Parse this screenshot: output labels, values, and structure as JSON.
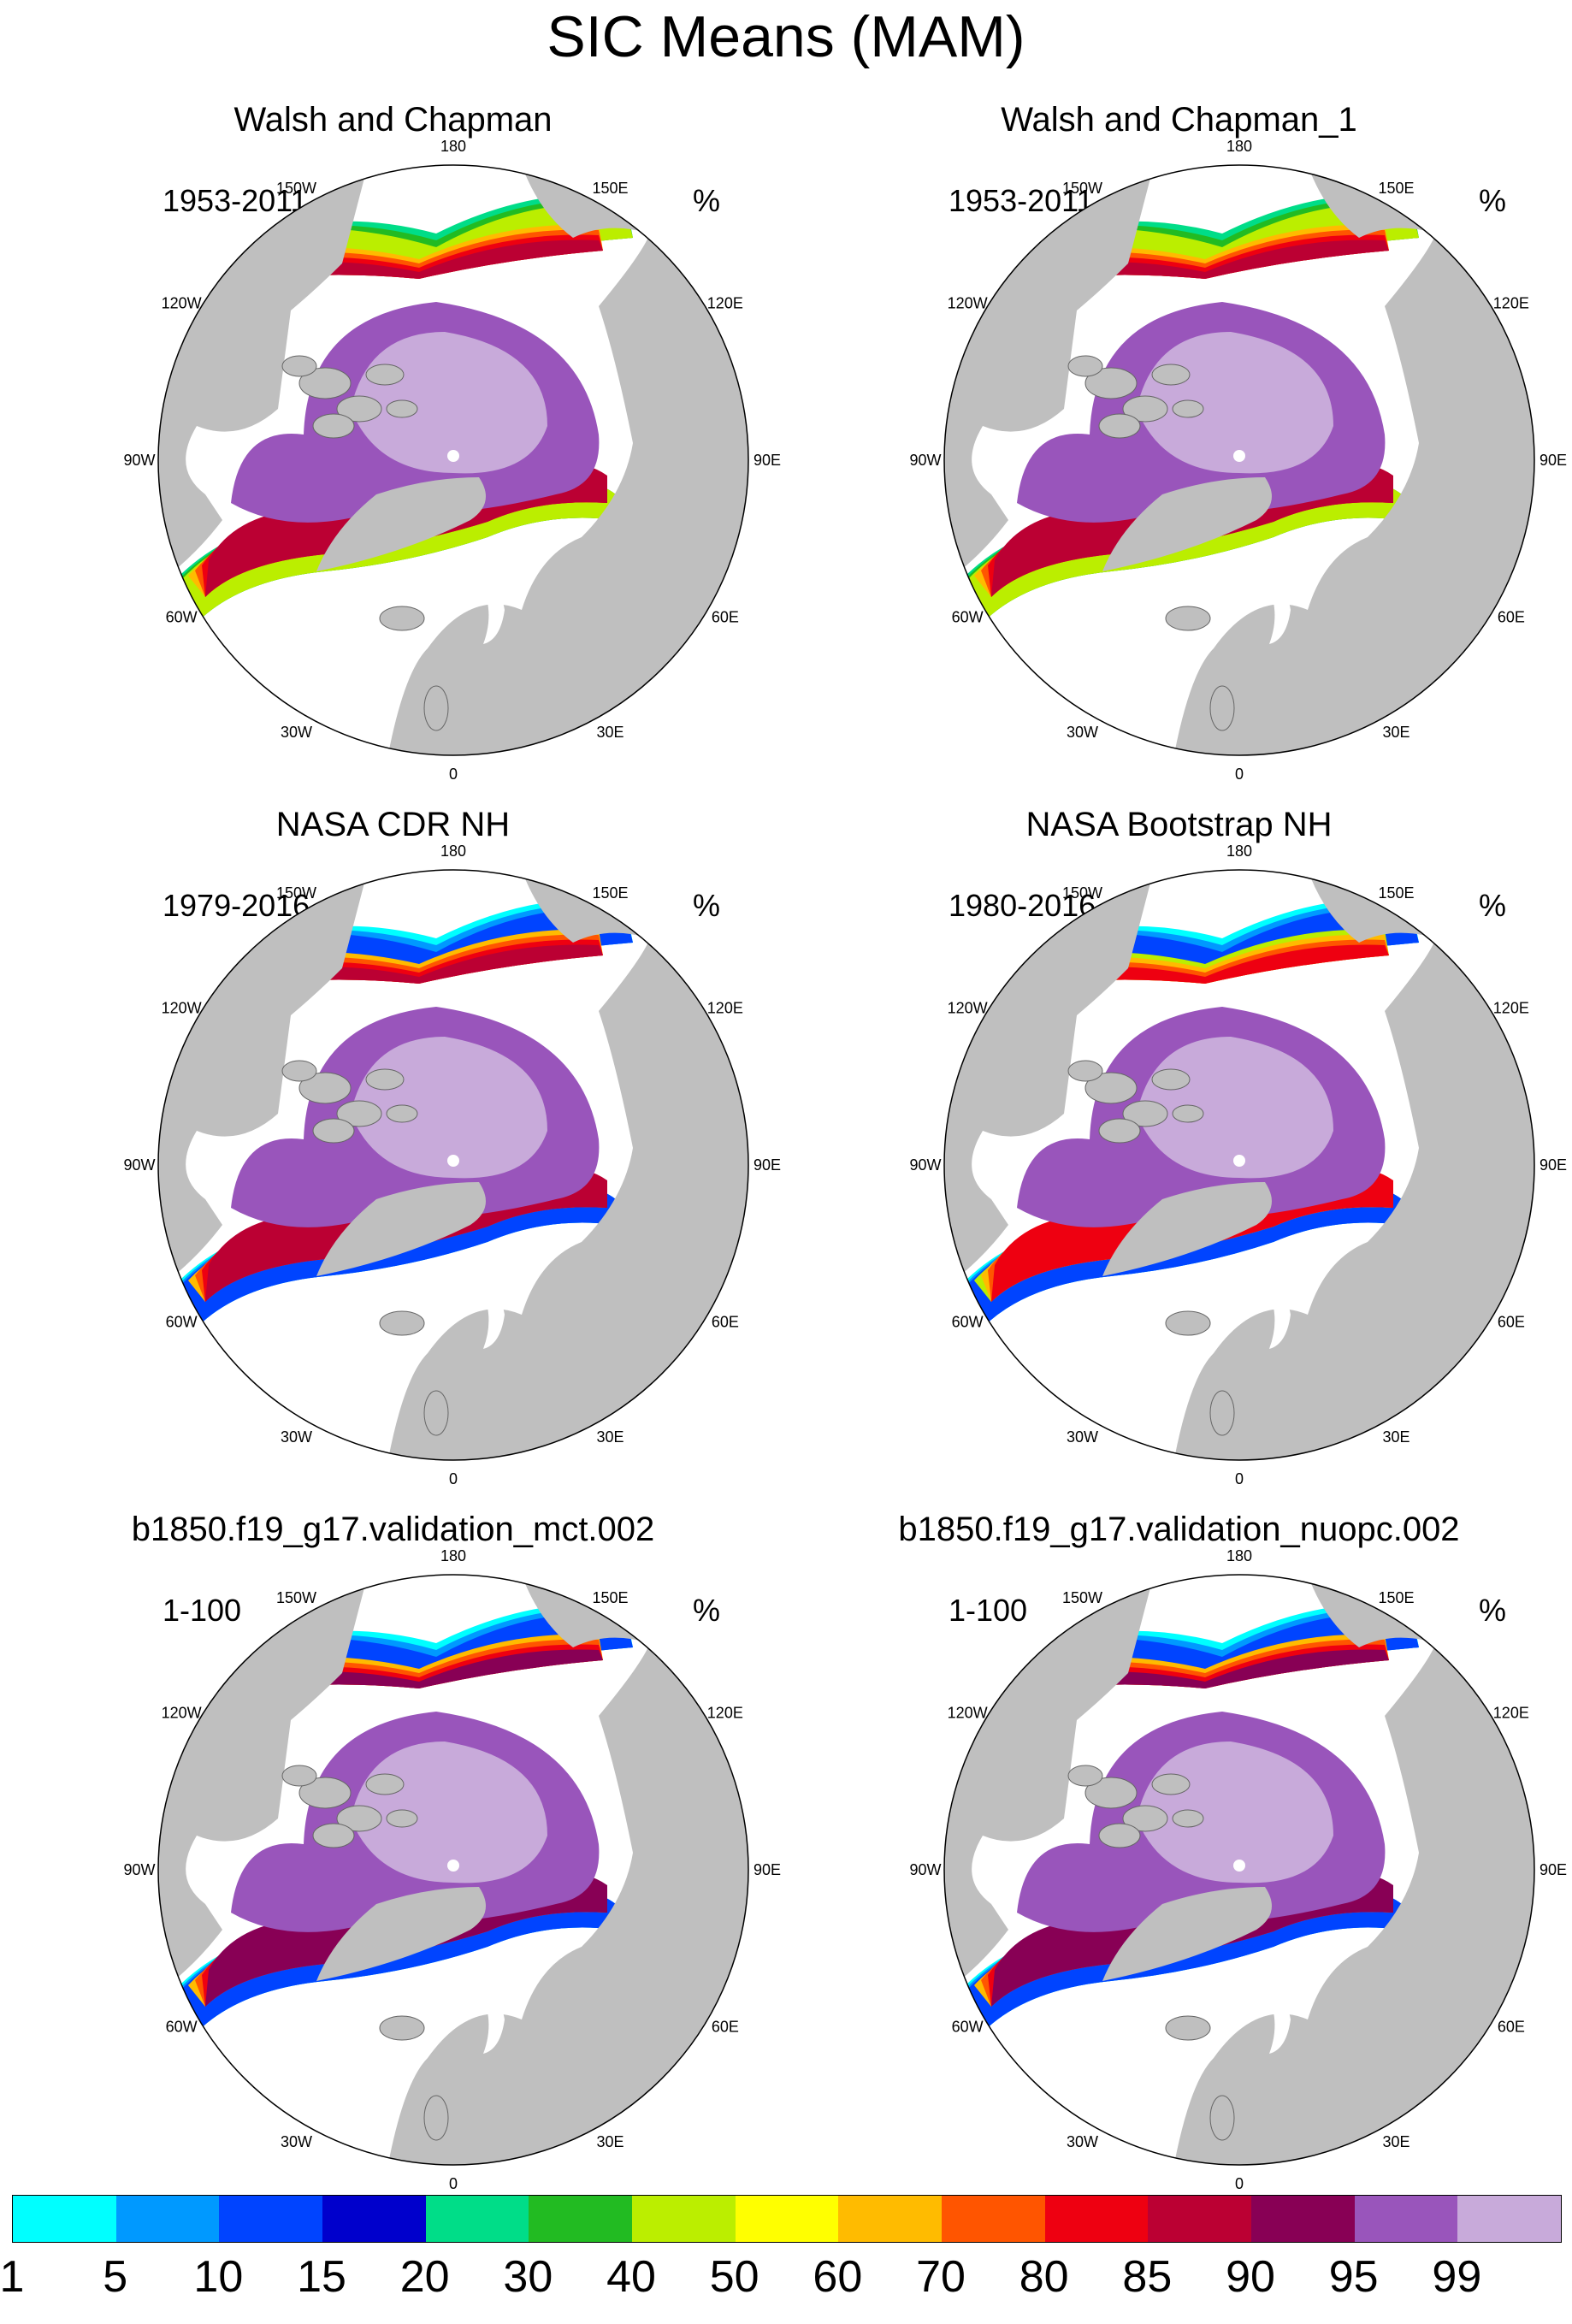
{
  "figure": {
    "title": "SIC Means (MAM)",
    "unit_label": "%"
  },
  "lon_labels": [
    "180",
    "150E",
    "120E",
    "90E",
    "60E",
    "30E",
    "0",
    "30W",
    "60W",
    "90W",
    "120W",
    "150W"
  ],
  "panels": [
    {
      "title": "Walsh and Chapman",
      "period": "1953-2011",
      "unit": "%"
    },
    {
      "title": "Walsh and Chapman_1",
      "period": "1953-2011",
      "unit": "%"
    },
    {
      "title": "NASA CDR NH",
      "period": "1979-2016",
      "unit": "%"
    },
    {
      "title": "NASA Bootstrap NH",
      "period": "1980-2016",
      "unit": "%"
    },
    {
      "title": "b1850.f19_g17.validation_mct.002",
      "period": "1-100",
      "unit": "%"
    },
    {
      "title": "b1850.f19_g17.validation_nuopc.002",
      "period": "1-100",
      "unit": "%"
    }
  ],
  "colorbar": {
    "labels": [
      "1",
      "5",
      "10",
      "15",
      "20",
      "30",
      "40",
      "50",
      "60",
      "70",
      "80",
      "85",
      "90",
      "95",
      "99"
    ],
    "colors": [
      "#00ffff",
      "#0099ff",
      "#0044ff",
      "#0000cc",
      "#00dd88",
      "#22bb22",
      "#bbee00",
      "#ffff00",
      "#ffbb00",
      "#ff5500",
      "#ee0011",
      "#bb0033",
      "#880055",
      "#9955bb",
      "#c8aada"
    ]
  },
  "colors": {
    "land": "#bfbfbf",
    "ocean": "#ffffff",
    "border": "#000000"
  }
}
